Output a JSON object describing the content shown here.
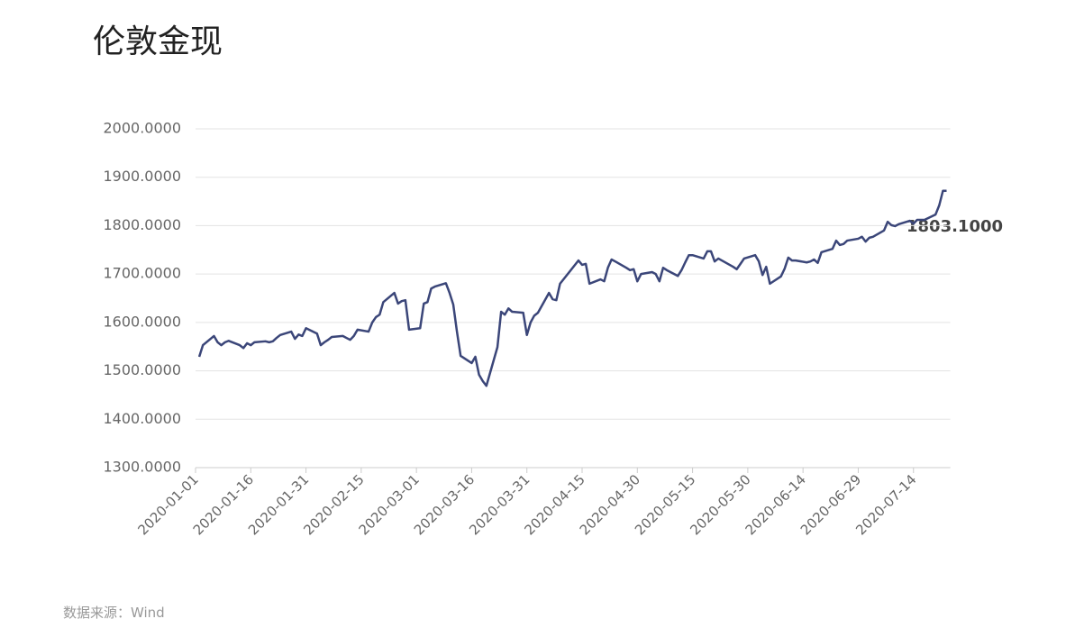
{
  "chart_data": {
    "type": "line",
    "title": "伦敦金现",
    "source": "数据来源：Wind",
    "annotation": "1803.1000",
    "color": "#3b4679",
    "grid": true,
    "ylim": [
      1300,
      2000
    ],
    "yticks": [
      {
        "value": 1300,
        "label": "1300.0000"
      },
      {
        "value": 1400,
        "label": "1400.0000"
      },
      {
        "value": 1500,
        "label": "1500.0000"
      },
      {
        "value": 1600,
        "label": "1600.0000"
      },
      {
        "value": 1700,
        "label": "1700.0000"
      },
      {
        "value": 1800,
        "label": "1800.0000"
      },
      {
        "value": 1900,
        "label": "1900.0000"
      },
      {
        "value": 2000,
        "label": "2000.0000"
      }
    ],
    "xlim": [
      "2020-01-01",
      "2020-07-24"
    ],
    "xticks": [
      "2020-01-01",
      "2020-01-16",
      "2020-01-31",
      "2020-02-15",
      "2020-03-01",
      "2020-03-16",
      "2020-03-31",
      "2020-04-15",
      "2020-04-30",
      "2020-05-15",
      "2020-05-30",
      "2020-06-14",
      "2020-06-29",
      "2020-07-14"
    ],
    "x": [
      "2020-01-02",
      "2020-01-03",
      "2020-01-06",
      "2020-01-07",
      "2020-01-08",
      "2020-01-09",
      "2020-01-10",
      "2020-01-13",
      "2020-01-14",
      "2020-01-15",
      "2020-01-16",
      "2020-01-17",
      "2020-01-20",
      "2020-01-21",
      "2020-01-22",
      "2020-01-23",
      "2020-01-24",
      "2020-01-27",
      "2020-01-28",
      "2020-01-29",
      "2020-01-30",
      "2020-01-31",
      "2020-02-03",
      "2020-02-04",
      "2020-02-05",
      "2020-02-06",
      "2020-02-07",
      "2020-02-10",
      "2020-02-11",
      "2020-02-12",
      "2020-02-13",
      "2020-02-14",
      "2020-02-17",
      "2020-02-18",
      "2020-02-19",
      "2020-02-20",
      "2020-02-21",
      "2020-02-24",
      "2020-02-25",
      "2020-02-26",
      "2020-02-27",
      "2020-02-28",
      "2020-03-02",
      "2020-03-03",
      "2020-03-04",
      "2020-03-05",
      "2020-03-06",
      "2020-03-09",
      "2020-03-10",
      "2020-03-11",
      "2020-03-12",
      "2020-03-13",
      "2020-03-16",
      "2020-03-17",
      "2020-03-18",
      "2020-03-19",
      "2020-03-20",
      "2020-03-23",
      "2020-03-24",
      "2020-03-25",
      "2020-03-26",
      "2020-03-27",
      "2020-03-30",
      "2020-03-31",
      "2020-04-01",
      "2020-04-02",
      "2020-04-03",
      "2020-04-06",
      "2020-04-07",
      "2020-04-08",
      "2020-04-09",
      "2020-04-14",
      "2020-04-15",
      "2020-04-16",
      "2020-04-17",
      "2020-04-20",
      "2020-04-21",
      "2020-04-22",
      "2020-04-23",
      "2020-04-24",
      "2020-04-27",
      "2020-04-28",
      "2020-04-29",
      "2020-04-30",
      "2020-05-01",
      "2020-05-04",
      "2020-05-05",
      "2020-05-06",
      "2020-05-07",
      "2020-05-08",
      "2020-05-11",
      "2020-05-12",
      "2020-05-13",
      "2020-05-14",
      "2020-05-15",
      "2020-05-18",
      "2020-05-19",
      "2020-05-20",
      "2020-05-21",
      "2020-05-22",
      "2020-05-26",
      "2020-05-27",
      "2020-05-28",
      "2020-05-29",
      "2020-06-01",
      "2020-06-02",
      "2020-06-03",
      "2020-06-04",
      "2020-06-05",
      "2020-06-08",
      "2020-06-09",
      "2020-06-10",
      "2020-06-11",
      "2020-06-12",
      "2020-06-15",
      "2020-06-16",
      "2020-06-17",
      "2020-06-18",
      "2020-06-19",
      "2020-06-22",
      "2020-06-23",
      "2020-06-24",
      "2020-06-25",
      "2020-06-26",
      "2020-06-29",
      "2020-06-30",
      "2020-07-01",
      "2020-07-02",
      "2020-07-03",
      "2020-07-06",
      "2020-07-07",
      "2020-07-08",
      "2020-07-09",
      "2020-07-10",
      "2020-07-13",
      "2020-07-14",
      "2020-07-15",
      "2020-07-16",
      "2020-07-17",
      "2020-07-20",
      "2020-07-21",
      "2020-07-22",
      "2020-07-23"
    ],
    "values": [
      1529,
      1553,
      1572,
      1559,
      1553,
      1559,
      1562,
      1553,
      1547,
      1557,
      1553,
      1559,
      1561,
      1559,
      1561,
      1568,
      1574,
      1581,
      1566,
      1575,
      1572,
      1588,
      1577,
      1553,
      1559,
      1564,
      1570,
      1572,
      1568,
      1564,
      1572,
      1585,
      1581,
      1600,
      1611,
      1616,
      1642,
      1661,
      1639,
      1644,
      1646,
      1585,
      1588,
      1639,
      1642,
      1670,
      1674,
      1681,
      1661,
      1637,
      1581,
      1531,
      1516,
      1529,
      1492,
      1479,
      1469,
      1549,
      1622,
      1616,
      1629,
      1622,
      1620,
      1574,
      1600,
      1614,
      1620,
      1661,
      1648,
      1646,
      1680,
      1728,
      1719,
      1721,
      1680,
      1689,
      1685,
      1713,
      1730,
      1726,
      1713,
      1708,
      1710,
      1685,
      1700,
      1704,
      1700,
      1685,
      1713,
      1708,
      1696,
      1708,
      1724,
      1739,
      1739,
      1732,
      1747,
      1747,
      1726,
      1732,
      1715,
      1710,
      1721,
      1732,
      1739,
      1726,
      1698,
      1715,
      1680,
      1695,
      1711,
      1734,
      1728,
      1728,
      1724,
      1726,
      1730,
      1723,
      1745,
      1752,
      1769,
      1760,
      1762,
      1769,
      1773,
      1777,
      1767,
      1775,
      1777,
      1790,
      1808,
      1801,
      1799,
      1803,
      1810,
      1804,
      1812,
      1812,
      1812,
      1823,
      1842,
      1872,
      1872
    ]
  }
}
